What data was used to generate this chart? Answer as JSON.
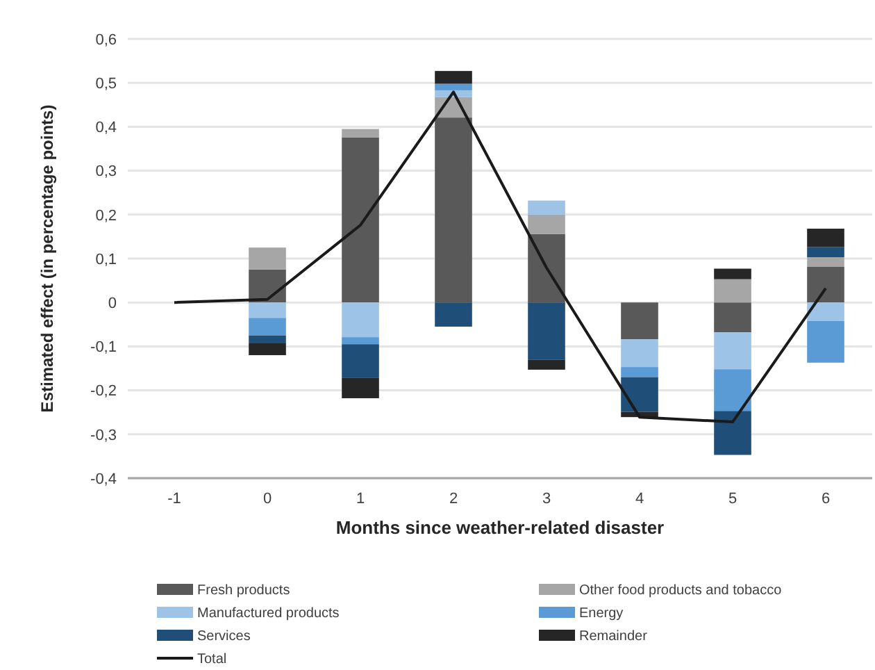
{
  "chart_data": {
    "type": "bar",
    "stacked": true,
    "xlabel": "Months since weather-related disaster",
    "ylabel": "Estimated effect (in percentage points)",
    "categories": [
      "-1",
      "0",
      "1",
      "2",
      "3",
      "4",
      "5",
      "6"
    ],
    "ylim": [
      -0.4,
      0.6
    ],
    "yticks": [
      {
        "value": -0.4,
        "label": "-0,4"
      },
      {
        "value": -0.3,
        "label": "-0,3"
      },
      {
        "value": -0.2,
        "label": "-0,2"
      },
      {
        "value": -0.1,
        "label": "-0,1"
      },
      0,
      {
        "value": 0.1,
        "label": "0,1"
      },
      {
        "value": 0.2,
        "label": "0,2"
      },
      {
        "value": 0.3,
        "label": "0,3"
      },
      {
        "value": 0.4,
        "label": "0,4"
      },
      {
        "value": 0.5,
        "label": "0,5"
      },
      {
        "value": 0.6,
        "label": "0,6"
      }
    ],
    "grid": "y",
    "legend": "bottom",
    "series": [
      {
        "name": "Fresh products",
        "color": "#595959",
        "values": [
          null,
          0.075,
          0.376,
          0.421,
          0.156,
          -0.084,
          -0.068,
          0.081
        ]
      },
      {
        "name": "Other food products and tobacco",
        "color": "#a6a6a6",
        "values": [
          null,
          0.05,
          0.019,
          0.047,
          0.044,
          null,
          0.053,
          0.022
        ]
      },
      {
        "name": "Manufactured products",
        "color": "#9dc3e6",
        "values": [
          null,
          -0.035,
          -0.079,
          0.015,
          0.032,
          -0.063,
          -0.084,
          -0.042
        ]
      },
      {
        "name": "Energy",
        "color": "#5b9bd5",
        "values": [
          null,
          -0.04,
          -0.016,
          0.015,
          null,
          -0.023,
          -0.095,
          -0.095
        ]
      },
      {
        "name": "Services",
        "color": "#1f4e79",
        "values": [
          null,
          -0.018,
          -0.076,
          -0.055,
          -0.13,
          -0.079,
          -0.1,
          0.023
        ]
      },
      {
        "name": "Remainder",
        "color": "#262626",
        "values": [
          null,
          -0.027,
          -0.047,
          0.029,
          -0.023,
          -0.012,
          0.024,
          0.042
        ]
      },
      {
        "name": "Total",
        "type": "line",
        "color": "#1a1a1a",
        "values": [
          0,
          0.007,
          0.176,
          0.479,
          0.079,
          -0.261,
          -0.272,
          0.032
        ]
      }
    ]
  }
}
